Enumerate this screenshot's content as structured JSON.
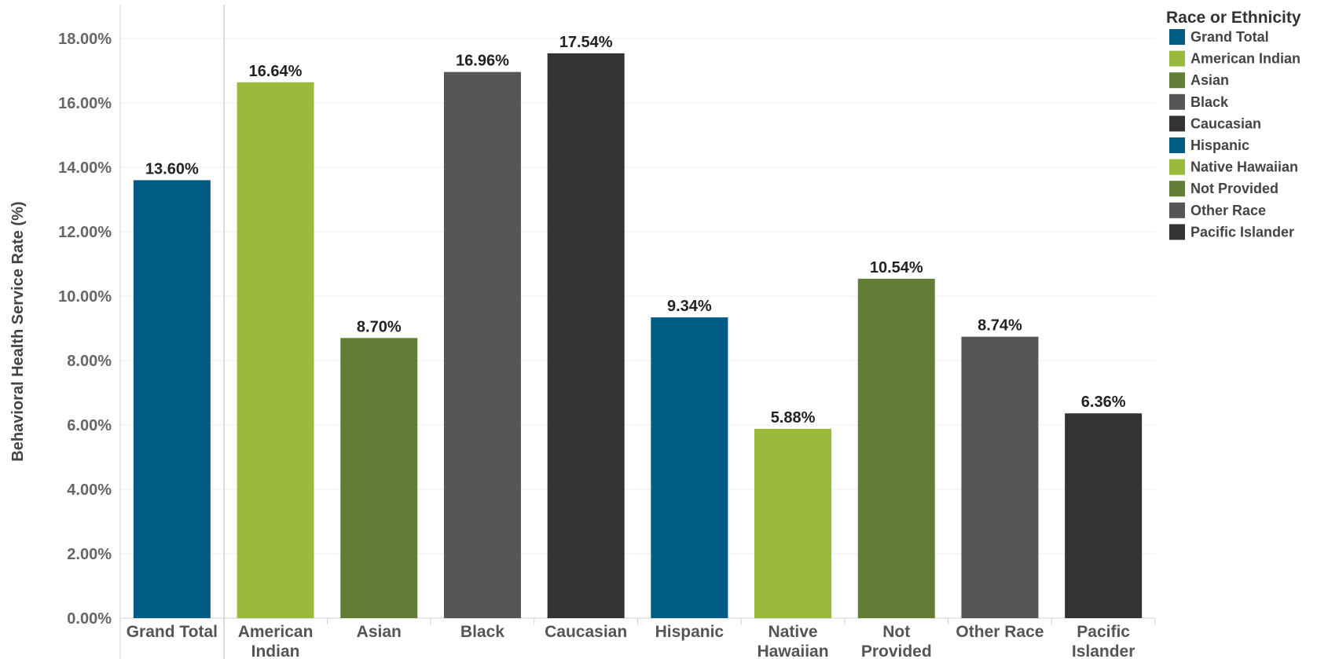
{
  "chart_data": {
    "type": "bar",
    "ylabel": "Behavioral Health Service Rate (%)",
    "ylim": [
      0,
      19
    ],
    "yticks": [
      "0.00%",
      "2.00%",
      "4.00%",
      "6.00%",
      "8.00%",
      "10.00%",
      "12.00%",
      "14.00%",
      "16.00%",
      "18.00%"
    ],
    "ytick_values": [
      0,
      2,
      4,
      6,
      8,
      10,
      12,
      14,
      16,
      18
    ],
    "grid": true,
    "categories": [
      [
        "Grand Total"
      ],
      [
        "American",
        "Indian"
      ],
      [
        "Asian"
      ],
      [
        "Black"
      ],
      [
        "Caucasian"
      ],
      [
        "Hispanic"
      ],
      [
        "Native",
        "Hawaiian"
      ],
      [
        "Not",
        "Provided"
      ],
      [
        "Other Race"
      ],
      [
        "Pacific",
        "Islander"
      ]
    ],
    "values": [
      13.6,
      16.64,
      8.7,
      16.96,
      17.54,
      9.34,
      5.88,
      10.54,
      8.74,
      6.36
    ],
    "value_labels": [
      "13.60%",
      "16.64%",
      "8.70%",
      "16.96%",
      "17.54%",
      "9.34%",
      "5.88%",
      "10.54%",
      "8.74%",
      "6.36%"
    ],
    "colors": [
      "#005b84",
      "#9aba3c",
      "#627d35",
      "#565656",
      "#333333",
      "#005b84",
      "#9aba3c",
      "#627d35",
      "#565656",
      "#333333"
    ],
    "legend": {
      "title": "Race or Ethnicity",
      "placement": "top-right",
      "entries": [
        {
          "label": "Grand Total",
          "color": "#005b84"
        },
        {
          "label": "American Indian",
          "color": "#9aba3c"
        },
        {
          "label": "Asian",
          "color": "#627d35"
        },
        {
          "label": "Black",
          "color": "#565656"
        },
        {
          "label": "Caucasian",
          "color": "#333333"
        },
        {
          "label": "Hispanic",
          "color": "#005b84"
        },
        {
          "label": "Native Hawaiian",
          "color": "#9aba3c"
        },
        {
          "label": "Not Provided",
          "color": "#627d35"
        },
        {
          "label": "Other Race",
          "color": "#565656"
        },
        {
          "label": "Pacific Islander",
          "color": "#333333"
        }
      ]
    }
  }
}
